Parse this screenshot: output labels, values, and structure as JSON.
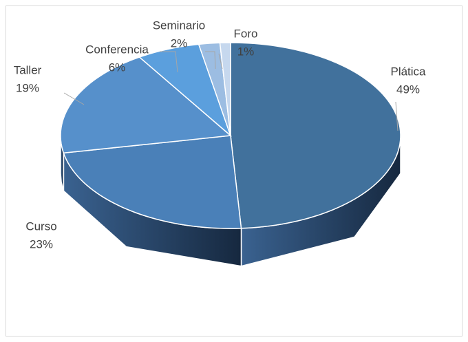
{
  "chart_data": {
    "type": "pie",
    "three_d": true,
    "categories": [
      "Plática",
      "Curso",
      "Taller",
      "Conferencia",
      "Seminario",
      "Foro"
    ],
    "values": [
      49,
      23,
      19,
      6,
      2,
      1
    ],
    "value_labels": [
      "49%",
      "23%",
      "19%",
      "6%",
      "2%",
      "1%"
    ],
    "colors": [
      "#41719c",
      "#4a80b8",
      "#5690cb",
      "#5b9fdd",
      "#9cbde2",
      "#c6d8ee"
    ]
  }
}
